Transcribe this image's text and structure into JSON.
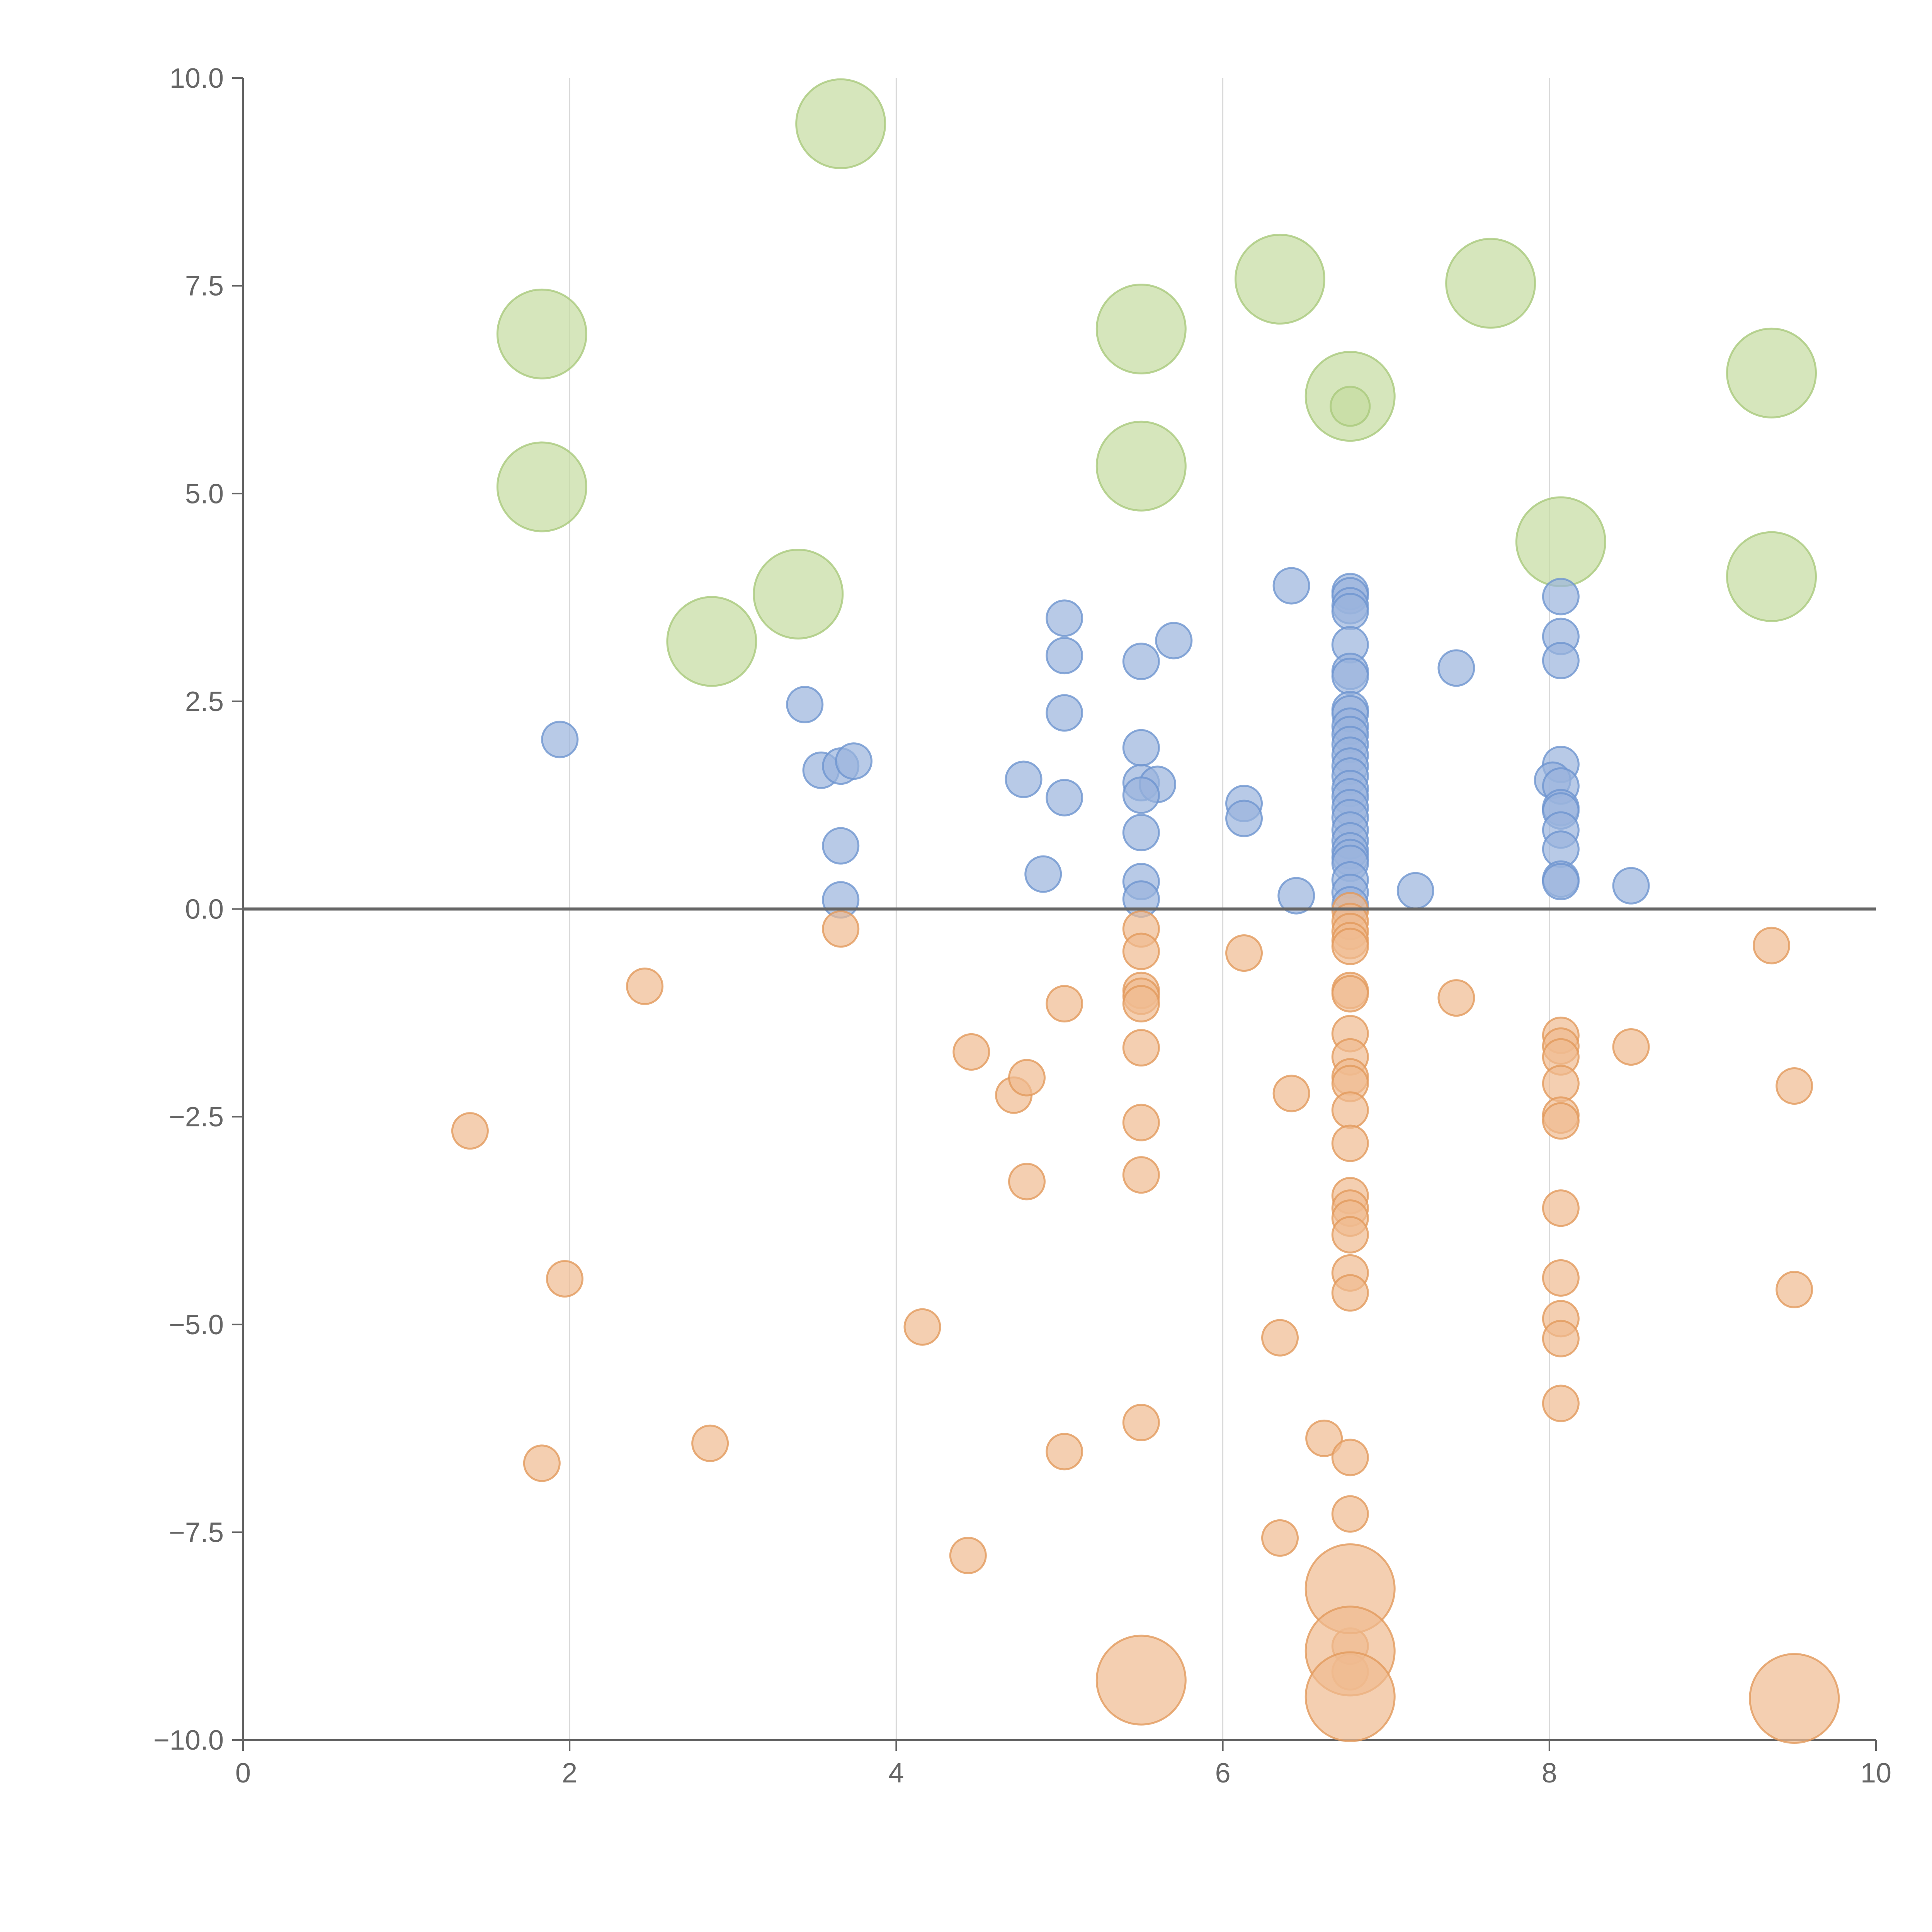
{
  "chart_data": {
    "type": "scatter",
    "title": "",
    "xlabel": "",
    "ylabel": "",
    "xlim": [
      0,
      10
    ],
    "ylim": [
      -10,
      10
    ],
    "grid": {
      "x": true,
      "y": false
    },
    "x_ticks": [
      {
        "value": 0,
        "label": "0"
      },
      {
        "value": 2,
        "label": "2"
      },
      {
        "value": 4,
        "label": "4"
      },
      {
        "value": 6,
        "label": "6"
      },
      {
        "value": 8,
        "label": "8"
      },
      {
        "value": 10,
        "label": "10"
      }
    ],
    "y_ticks": [
      {
        "value": 10,
        "label": "10.0"
      },
      {
        "value": 7.5,
        "label": "7.5"
      },
      {
        "value": 5,
        "label": "5.0"
      },
      {
        "value": 2.5,
        "label": "2.5"
      },
      {
        "value": 0,
        "label": "0.0"
      },
      {
        "value": -2.5,
        "label": "−2.5"
      },
      {
        "value": -5,
        "label": "−5.0"
      },
      {
        "value": -7.5,
        "label": "−7.5"
      },
      {
        "value": -10,
        "label": "−10.0"
      }
    ],
    "colors": {
      "green": {
        "fill": "#c5dba0",
        "stroke": "#a9c97c"
      },
      "blue": {
        "fill": "#9ab3dd",
        "stroke": "#6e95cf"
      },
      "orange": {
        "fill": "#f0bb90",
        "stroke": "#e29a5c"
      }
    },
    "series": [
      {
        "color": "green",
        "points": [
          {
            "x": 3.66,
            "y": 9.45,
            "size": 2.5
          },
          {
            "x": 1.83,
            "y": 6.92,
            "size": 2.5
          },
          {
            "x": 5.5,
            "y": 6.98,
            "size": 2.5
          },
          {
            "x": 6.35,
            "y": 7.58,
            "size": 2.5
          },
          {
            "x": 7.64,
            "y": 7.53,
            "size": 2.5
          },
          {
            "x": 6.78,
            "y": 6.17,
            "size": 2.5
          },
          {
            "x": 9.36,
            "y": 6.45,
            "size": 2.5
          },
          {
            "x": 1.83,
            "y": 5.08,
            "size": 2.5
          },
          {
            "x": 5.5,
            "y": 5.33,
            "size": 2.5
          },
          {
            "x": 3.4,
            "y": 3.79,
            "size": 2.5
          },
          {
            "x": 2.87,
            "y": 3.22,
            "size": 2.5
          },
          {
            "x": 8.07,
            "y": 4.42,
            "size": 2.5
          },
          {
            "x": 9.36,
            "y": 4.0,
            "size": 2.5
          },
          {
            "x": 6.78,
            "y": 6.05,
            "size": 1.1
          }
        ]
      },
      {
        "color": "blue",
        "points": [
          {
            "x": 1.94,
            "y": 2.04
          },
          {
            "x": 3.44,
            "y": 2.46
          },
          {
            "x": 3.54,
            "y": 1.67
          },
          {
            "x": 3.66,
            "y": 1.72
          },
          {
            "x": 3.74,
            "y": 1.78
          },
          {
            "x": 3.66,
            "y": 0.76
          },
          {
            "x": 3.66,
            "y": 0.11
          },
          {
            "x": 4.78,
            "y": 1.56
          },
          {
            "x": 4.9,
            "y": 0.42
          },
          {
            "x": 5.03,
            "y": 3.5
          },
          {
            "x": 5.03,
            "y": 3.05
          },
          {
            "x": 5.03,
            "y": 2.36
          },
          {
            "x": 5.03,
            "y": 1.34
          },
          {
            "x": 5.5,
            "y": 2.98
          },
          {
            "x": 5.5,
            "y": 1.94
          },
          {
            "x": 5.5,
            "y": 1.52
          },
          {
            "x": 5.6,
            "y": 1.5
          },
          {
            "x": 5.5,
            "y": 1.37
          },
          {
            "x": 5.5,
            "y": 0.92
          },
          {
            "x": 5.5,
            "y": 0.33
          },
          {
            "x": 5.5,
            "y": 0.12
          },
          {
            "x": 5.7,
            "y": 3.23
          },
          {
            "x": 6.13,
            "y": 1.27
          },
          {
            "x": 6.13,
            "y": 1.09
          },
          {
            "x": 6.42,
            "y": 3.89
          },
          {
            "x": 6.45,
            "y": 0.16
          },
          {
            "x": 6.78,
            "y": 3.82
          },
          {
            "x": 6.78,
            "y": 3.77
          },
          {
            "x": 6.78,
            "y": 3.65
          },
          {
            "x": 6.78,
            "y": 3.58
          },
          {
            "x": 6.78,
            "y": 3.18
          },
          {
            "x": 6.78,
            "y": 2.86
          },
          {
            "x": 6.78,
            "y": 2.8
          },
          {
            "x": 6.78,
            "y": 2.4
          },
          {
            "x": 6.78,
            "y": 2.35
          },
          {
            "x": 6.78,
            "y": 2.2
          },
          {
            "x": 6.78,
            "y": 2.1
          },
          {
            "x": 6.78,
            "y": 1.98
          },
          {
            "x": 6.78,
            "y": 1.85
          },
          {
            "x": 6.78,
            "y": 1.72
          },
          {
            "x": 6.78,
            "y": 1.6
          },
          {
            "x": 6.78,
            "y": 1.45
          },
          {
            "x": 6.78,
            "y": 1.35
          },
          {
            "x": 6.78,
            "y": 1.22
          },
          {
            "x": 6.78,
            "y": 1.1
          },
          {
            "x": 6.78,
            "y": 0.95
          },
          {
            "x": 6.78,
            "y": 0.82
          },
          {
            "x": 6.78,
            "y": 0.7
          },
          {
            "x": 6.78,
            "y": 0.62
          },
          {
            "x": 6.78,
            "y": 0.55
          },
          {
            "x": 6.78,
            "y": 0.35
          },
          {
            "x": 6.78,
            "y": 0.2
          },
          {
            "x": 6.78,
            "y": 0.05
          },
          {
            "x": 7.18,
            "y": 0.22
          },
          {
            "x": 7.43,
            "y": 2.9
          },
          {
            "x": 8.07,
            "y": 3.76
          },
          {
            "x": 8.07,
            "y": 3.28
          },
          {
            "x": 8.07,
            "y": 2.99
          },
          {
            "x": 8.07,
            "y": 1.74
          },
          {
            "x": 8.02,
            "y": 1.55
          },
          {
            "x": 8.07,
            "y": 1.48
          },
          {
            "x": 8.07,
            "y": 1.22
          },
          {
            "x": 8.07,
            "y": 1.18
          },
          {
            "x": 8.07,
            "y": 0.95
          },
          {
            "x": 8.07,
            "y": 0.72
          },
          {
            "x": 8.07,
            "y": 0.36
          },
          {
            "x": 8.07,
            "y": 0.33
          },
          {
            "x": 8.5,
            "y": 0.28
          }
        ]
      },
      {
        "color": "orange",
        "points": [
          {
            "x": 1.39,
            "y": -2.67
          },
          {
            "x": 1.97,
            "y": -4.45
          },
          {
            "x": 1.83,
            "y": -6.67
          },
          {
            "x": 2.46,
            "y": -0.93
          },
          {
            "x": 2.86,
            "y": -6.43
          },
          {
            "x": 3.66,
            "y": -0.24
          },
          {
            "x": 4.16,
            "y": -5.03
          },
          {
            "x": 4.46,
            "y": -1.72
          },
          {
            "x": 4.44,
            "y": -7.78
          },
          {
            "x": 4.72,
            "y": -2.24
          },
          {
            "x": 4.8,
            "y": -2.03
          },
          {
            "x": 4.8,
            "y": -3.28
          },
          {
            "x": 5.03,
            "y": -1.14
          },
          {
            "x": 5.03,
            "y": -6.53
          },
          {
            "x": 5.5,
            "y": -0.24
          },
          {
            "x": 5.5,
            "y": -0.51
          },
          {
            "x": 5.5,
            "y": -0.98
          },
          {
            "x": 5.5,
            "y": -1.05
          },
          {
            "x": 5.5,
            "y": -1.14
          },
          {
            "x": 5.5,
            "y": -1.67
          },
          {
            "x": 5.5,
            "y": -2.57
          },
          {
            "x": 5.5,
            "y": -3.2
          },
          {
            "x": 5.5,
            "y": -6.18
          },
          {
            "x": 6.13,
            "y": -0.53
          },
          {
            "x": 6.42,
            "y": -2.22
          },
          {
            "x": 6.35,
            "y": -5.16
          },
          {
            "x": 6.35,
            "y": -7.57
          },
          {
            "x": 6.62,
            "y": -6.37
          },
          {
            "x": 6.78,
            "y": -0.02
          },
          {
            "x": 6.78,
            "y": -0.15
          },
          {
            "x": 6.78,
            "y": -0.27
          },
          {
            "x": 6.78,
            "y": -0.38
          },
          {
            "x": 6.78,
            "y": -0.45
          },
          {
            "x": 6.78,
            "y": -0.98
          },
          {
            "x": 6.78,
            "y": -1.02
          },
          {
            "x": 6.78,
            "y": -1.5
          },
          {
            "x": 6.78,
            "y": -1.78
          },
          {
            "x": 6.78,
            "y": -2.02
          },
          {
            "x": 6.78,
            "y": -2.1
          },
          {
            "x": 6.78,
            "y": -2.42
          },
          {
            "x": 6.78,
            "y": -2.82
          },
          {
            "x": 6.78,
            "y": -3.45
          },
          {
            "x": 6.78,
            "y": -3.6
          },
          {
            "x": 6.78,
            "y": -3.72
          },
          {
            "x": 6.78,
            "y": -3.92
          },
          {
            "x": 6.78,
            "y": -4.38
          },
          {
            "x": 6.78,
            "y": -4.62
          },
          {
            "x": 6.78,
            "y": -6.6
          },
          {
            "x": 6.78,
            "y": -7.28
          },
          {
            "x": 6.78,
            "y": -8.87
          },
          {
            "x": 6.78,
            "y": -9.18
          },
          {
            "x": 7.43,
            "y": -1.07
          },
          {
            "x": 8.07,
            "y": -1.52
          },
          {
            "x": 8.07,
            "y": -1.65
          },
          {
            "x": 8.07,
            "y": -1.78
          },
          {
            "x": 8.07,
            "y": -2.1
          },
          {
            "x": 8.07,
            "y": -2.48
          },
          {
            "x": 8.07,
            "y": -2.55
          },
          {
            "x": 8.07,
            "y": -3.6
          },
          {
            "x": 8.07,
            "y": -4.44
          },
          {
            "x": 8.07,
            "y": -4.93
          },
          {
            "x": 8.07,
            "y": -5.17
          },
          {
            "x": 8.07,
            "y": -5.95
          },
          {
            "x": 8.5,
            "y": -1.66
          },
          {
            "x": 9.36,
            "y": -0.44
          },
          {
            "x": 9.5,
            "y": -2.13
          },
          {
            "x": 9.5,
            "y": -4.58
          },
          {
            "x": 5.5,
            "y": -9.28,
            "size": 2.5
          },
          {
            "x": 6.78,
            "y": -8.18,
            "size": 2.5
          },
          {
            "x": 6.78,
            "y": -8.93,
            "size": 2.5
          },
          {
            "x": 6.78,
            "y": -9.48,
            "size": 2.5
          },
          {
            "x": 9.5,
            "y": -9.5,
            "size": 2.5
          }
        ]
      }
    ]
  }
}
